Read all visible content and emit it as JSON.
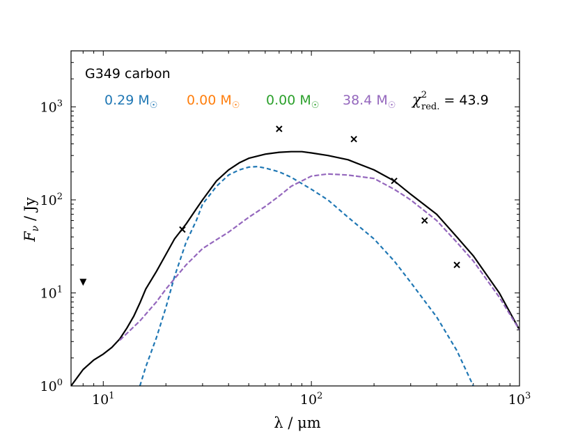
{
  "chart_data": {
    "type": "line",
    "xscale": "log",
    "yscale": "log",
    "xlim": [
      7,
      1000
    ],
    "ylim": [
      1,
      4000
    ],
    "xlabel": "λ / μm",
    "ylabel": "F_ν / Jy",
    "xticks": [
      {
        "value": 10,
        "base": "10",
        "exp": "1"
      },
      {
        "value": 100,
        "base": "10",
        "exp": "2"
      },
      {
        "value": 1000,
        "base": "10",
        "exp": "3"
      }
    ],
    "yticks": [
      {
        "value": 1,
        "base": "10",
        "exp": "0"
      },
      {
        "value": 10,
        "base": "10",
        "exp": "1"
      },
      {
        "value": 100,
        "base": "10",
        "exp": "2"
      },
      {
        "value": 1000,
        "base": "10",
        "exp": "3"
      }
    ],
    "title": "G349 carbon",
    "legend": [
      {
        "text": "0.29 M",
        "symbol": "☉",
        "color": "#1f77b4"
      },
      {
        "text": "0.00 M",
        "symbol": "☉",
        "color": "#ff7f0e"
      },
      {
        "text": "0.00 M",
        "symbol": "☉",
        "color": "#2ca02c"
      },
      {
        "text": "38.4 M",
        "symbol": "☉",
        "color": "#9467bd"
      }
    ],
    "chi": {
      "symbol": "χ",
      "sup": "2",
      "sub": "red.",
      "value": "= 43.9"
    },
    "series": [
      {
        "name": "total",
        "color": "#000000",
        "dash": "none",
        "points": [
          [
            7,
            1.0
          ],
          [
            8,
            1.5
          ],
          [
            9,
            1.9
          ],
          [
            10,
            2.2
          ],
          [
            11,
            2.6
          ],
          [
            12,
            3.2
          ],
          [
            13,
            4.2
          ],
          [
            14,
            5.6
          ],
          [
            15,
            7.8
          ],
          [
            16,
            11
          ],
          [
            18,
            17
          ],
          [
            20,
            26
          ],
          [
            22,
            38
          ],
          [
            25,
            55
          ],
          [
            28,
            80
          ],
          [
            30,
            100
          ],
          [
            35,
            160
          ],
          [
            40,
            210
          ],
          [
            45,
            250
          ],
          [
            50,
            280
          ],
          [
            60,
            310
          ],
          [
            70,
            325
          ],
          [
            80,
            330
          ],
          [
            90,
            330
          ],
          [
            100,
            320
          ],
          [
            120,
            300
          ],
          [
            150,
            270
          ],
          [
            200,
            210
          ],
          [
            250,
            160
          ],
          [
            300,
            115
          ],
          [
            400,
            70
          ],
          [
            500,
            40
          ],
          [
            600,
            25
          ],
          [
            800,
            10
          ],
          [
            1000,
            4
          ]
        ]
      },
      {
        "name": "blue component",
        "color": "#1f77b4",
        "dash": "6,4",
        "points": [
          [
            15,
            1
          ],
          [
            16,
            1.6
          ],
          [
            18,
            3.3
          ],
          [
            20,
            7
          ],
          [
            22,
            15
          ],
          [
            25,
            35
          ],
          [
            28,
            60
          ],
          [
            30,
            90
          ],
          [
            35,
            140
          ],
          [
            40,
            185
          ],
          [
            45,
            210
          ],
          [
            50,
            225
          ],
          [
            55,
            228
          ],
          [
            60,
            220
          ],
          [
            70,
            200
          ],
          [
            80,
            175
          ],
          [
            100,
            130
          ],
          [
            120,
            100
          ],
          [
            150,
            65
          ],
          [
            200,
            38
          ],
          [
            250,
            22
          ],
          [
            300,
            13
          ],
          [
            400,
            5.5
          ],
          [
            500,
            2.4
          ],
          [
            600,
            1
          ]
        ]
      },
      {
        "name": "purple component",
        "color": "#9467bd",
        "dash": "7,3",
        "points": [
          [
            12,
            3.1
          ],
          [
            15,
            5
          ],
          [
            18,
            8
          ],
          [
            20,
            11
          ],
          [
            25,
            20
          ],
          [
            30,
            30
          ],
          [
            40,
            45
          ],
          [
            50,
            65
          ],
          [
            60,
            85
          ],
          [
            70,
            110
          ],
          [
            80,
            140
          ],
          [
            90,
            160
          ],
          [
            100,
            180
          ],
          [
            120,
            190
          ],
          [
            150,
            185
          ],
          [
            200,
            170
          ],
          [
            250,
            130
          ],
          [
            300,
            100
          ],
          [
            400,
            60
          ],
          [
            500,
            35
          ],
          [
            600,
            22
          ],
          [
            800,
            9
          ],
          [
            1000,
            4
          ]
        ]
      }
    ],
    "observations": [
      {
        "x": 24,
        "y": 48
      },
      {
        "x": 70,
        "y": 580
      },
      {
        "x": 160,
        "y": 450
      },
      {
        "x": 250,
        "y": 160
      },
      {
        "x": 350,
        "y": 60
      },
      {
        "x": 500,
        "y": 20
      }
    ],
    "upper_limits": [
      {
        "x": 8,
        "y": 13
      }
    ]
  }
}
